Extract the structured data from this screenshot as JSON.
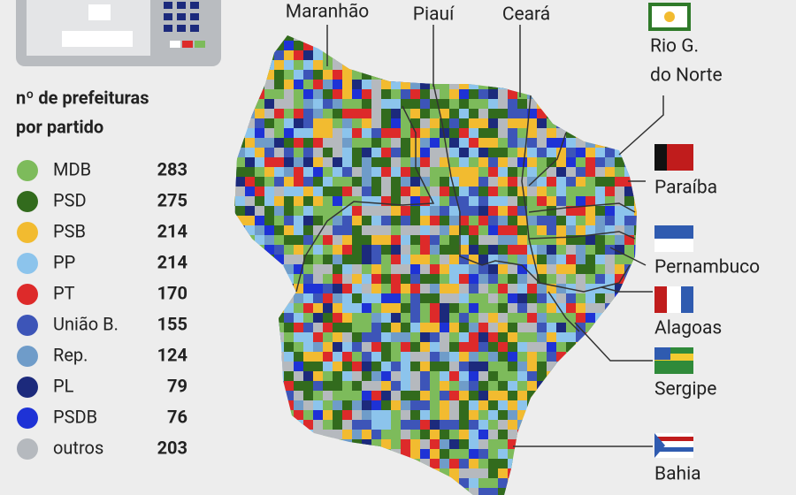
{
  "legend": {
    "title_lines": [
      "nº de prefeituras",
      "por partido"
    ],
    "parties": [
      {
        "name": "MDB",
        "count": "283",
        "color": "#7dbb5b"
      },
      {
        "name": "PSD",
        "count": "275",
        "color": "#326b1d"
      },
      {
        "name": "PSB",
        "count": "214",
        "color": "#f2bb30"
      },
      {
        "name": "PP",
        "count": "214",
        "color": "#8cc4ec"
      },
      {
        "name": "PT",
        "count": "170",
        "color": "#dd2a2a"
      },
      {
        "name": "União B.",
        "count": "155",
        "color": "#3d55b8"
      },
      {
        "name": "Rep.",
        "count": "124",
        "color": "#6f9cc9"
      },
      {
        "name": "PL",
        "count": "79",
        "color": "#1c2a7c"
      },
      {
        "name": "PSDB",
        "count": "76",
        "color": "#1e32d6"
      },
      {
        "name": "outros",
        "count": "203",
        "color": "#b5b9be"
      }
    ]
  },
  "states": {
    "maranhao": "Maranhão",
    "piaui": "Piauí",
    "ceara": "Ceará",
    "rio_grande_do_norte": [
      "Rio G.",
      "do Norte"
    ],
    "paraiba": "Paraíba",
    "pernambuco": "Pernambuco",
    "alagoas": "Alagoas",
    "sergipe": "Sergipe",
    "bahia": "Bahia"
  }
}
